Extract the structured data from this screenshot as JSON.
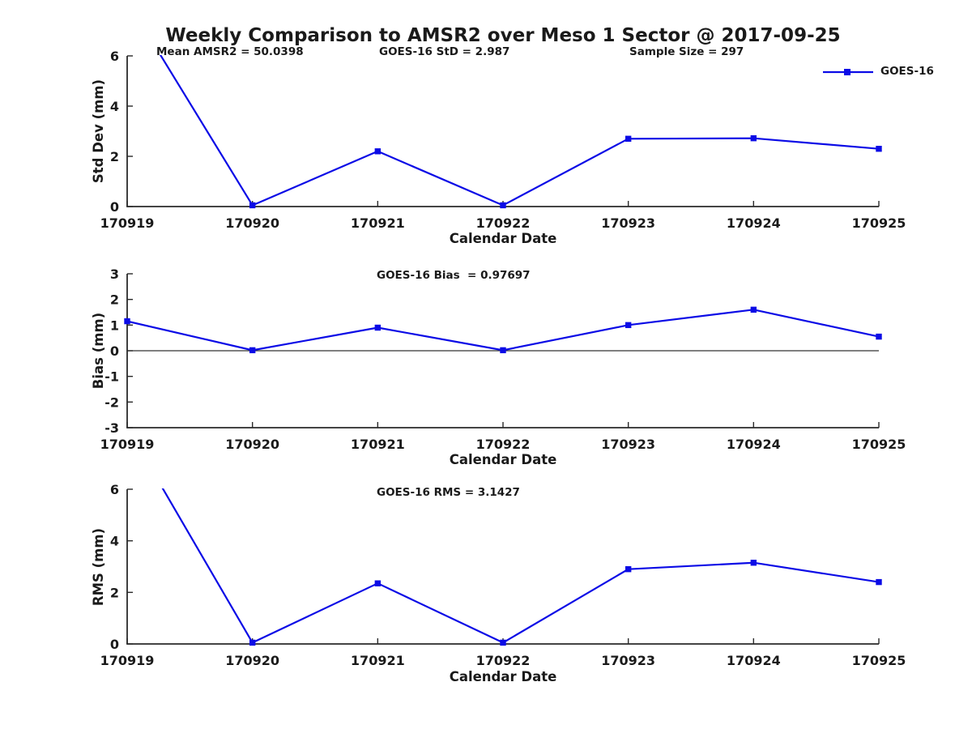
{
  "title": "Weekly Comparison to AMSR2 over Meso 1 Sector @ 2017-09-25",
  "legend": {
    "label": "GOES-16"
  },
  "colors": {
    "line_blue": "#0b0be6",
    "axis": "#2a2a2a",
    "zero_line": "#333333",
    "text": "#1a1a1a",
    "background": "#ffffff"
  },
  "chart_data": [
    {
      "id": "std-dev",
      "type": "line",
      "categories": [
        "170919",
        "170920",
        "170921",
        "170922",
        "170923",
        "170924",
        "170925"
      ],
      "series": [
        {
          "name": "GOES-16",
          "marker": "filled-square",
          "values": [
            8.2,
            0.05,
            2.2,
            0.05,
            2.7,
            2.72,
            2.3
          ],
          "first_point_clipped_above_ymax": true
        }
      ],
      "xlabel": "Calendar Date",
      "ylabel": "Std Dev (mm)",
      "ylim": [
        0,
        6
      ],
      "yticks": [
        0,
        2,
        4,
        6
      ],
      "grid": false,
      "legend_position": "top-right-outside",
      "annotations": [
        {
          "text": "Mean AMSR2 = 50.0398"
        },
        {
          "text": "GOES-16 StD = 2.987"
        },
        {
          "text": "Sample Size = 297"
        }
      ]
    },
    {
      "id": "bias",
      "type": "line",
      "categories": [
        "170919",
        "170920",
        "170921",
        "170922",
        "170923",
        "170924",
        "170925"
      ],
      "series": [
        {
          "name": "GOES-16",
          "marker": "filled-square",
          "values": [
            1.15,
            0.02,
            0.9,
            0.02,
            1.0,
            1.6,
            0.55
          ]
        }
      ],
      "xlabel": "Calendar Date",
      "ylabel": "Bias (mm)",
      "ylim": [
        -3,
        3
      ],
      "yticks": [
        -3,
        -2,
        -1,
        0,
        1,
        2,
        3
      ],
      "zero_line": true,
      "grid": false,
      "annotations": [
        {
          "text": "GOES-16 Bias  = 0.97697"
        }
      ]
    },
    {
      "id": "rms",
      "type": "line",
      "categories": [
        "170919",
        "170920",
        "170921",
        "170922",
        "170923",
        "170924",
        "170925"
      ],
      "series": [
        {
          "name": "GOES-16",
          "marker": "filled-square",
          "values": [
            8.4,
            0.05,
            2.35,
            0.05,
            2.9,
            3.15,
            2.4
          ],
          "first_point_clipped_above_ymax": true
        }
      ],
      "xlabel": "Calendar Date",
      "ylabel": "RMS (mm)",
      "ylim": [
        0,
        6
      ],
      "yticks": [
        0,
        2,
        4,
        6
      ],
      "grid": false,
      "annotations": [
        {
          "text": "GOES-16 RMS = 3.1427"
        }
      ]
    }
  ]
}
